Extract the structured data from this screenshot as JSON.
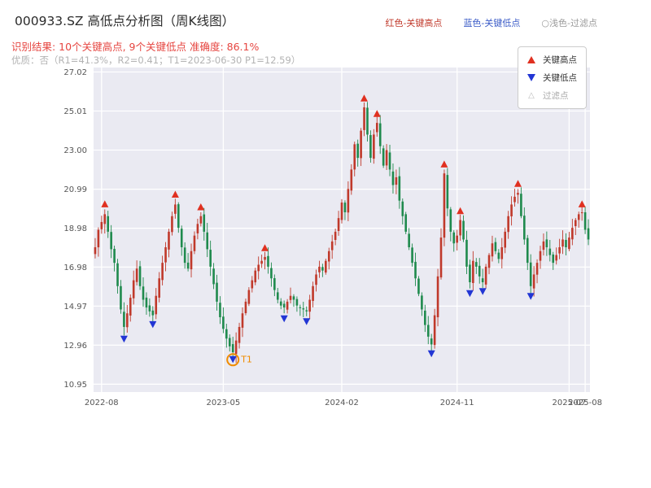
{
  "header": {
    "title": "000933.SZ 高低点分析图（周K线图）",
    "legend_high": "红色-关键高点",
    "legend_low": "蓝色-关键低点",
    "legend_filtered": "○浅色-过滤点",
    "result_line": "识别结果: 10个关键高点, 9个关键低点  准确度: 86.1%",
    "quality_line": "优质：否（R1=41.3%，R2=0.41；T1=2023-06-30 P1=12.59）"
  },
  "legend_box": {
    "items": [
      {
        "label": "关键高点",
        "marker": "red-up-triangle",
        "color": "#e03020"
      },
      {
        "label": "关键低点",
        "marker": "blue-down-triangle",
        "color": "#2236d4"
      },
      {
        "label": "过滤点",
        "marker": "hollow-triangle",
        "color": "#bbbbbb"
      }
    ]
  },
  "chart_data": {
    "type": "candlestick",
    "title": "000933.SZ 高低点分析图（周K线图）",
    "bg_color": "#eaeaf2",
    "grid": true,
    "grid_color": "#ffffff",
    "legend_position": "upper right",
    "up_color": "#c0392b",
    "down_color": "#1f8a4d",
    "key_high_color": "#e03020",
    "key_low_color": "#2236d4",
    "t1_color": "#f08c00",
    "ylim": [
      10.55,
      27.25
    ],
    "y_ticks": [
      27.02,
      25.01,
      23.0,
      20.99,
      18.98,
      16.98,
      14.97,
      12.96,
      10.95
    ],
    "x_ticks": [
      {
        "label": "2022-08",
        "index": 2
      },
      {
        "label": "2023-05",
        "index": 40
      },
      {
        "label": "2024-02",
        "index": 77
      },
      {
        "label": "2024-11",
        "index": 113
      },
      {
        "label": "2025-07",
        "index": 148
      },
      {
        "label": "2025-08",
        "index": 153
      }
    ],
    "closes": [
      18.0,
      18.9,
      19.3,
      19.7,
      18.8,
      17.9,
      17.2,
      16.0,
      14.8,
      13.9,
      14.6,
      15.4,
      16.3,
      16.9,
      16.0,
      15.3,
      14.9,
      14.7,
      14.5,
      15.5,
      16.4,
      17.2,
      18.0,
      18.8,
      19.6,
      20.2,
      19.0,
      18.0,
      17.2,
      16.9,
      17.8,
      18.6,
      19.2,
      19.6,
      18.8,
      17.9,
      17.0,
      16.1,
      15.2,
      14.4,
      13.8,
      13.3,
      12.9,
      12.6,
      13.2,
      13.9,
      14.6,
      15.2,
      15.8,
      16.3,
      16.8,
      17.1,
      17.3,
      17.5,
      17.0,
      16.4,
      15.8,
      15.3,
      15.0,
      14.9,
      15.2,
      15.5,
      15.3,
      15.0,
      14.9,
      14.8,
      14.7,
      15.3,
      16.0,
      16.6,
      17.0,
      16.8,
      17.3,
      17.8,
      18.3,
      18.8,
      19.5,
      20.3,
      19.8,
      21.0,
      22.0,
      23.3,
      22.6,
      24.0,
      25.2,
      23.8,
      22.6,
      23.8,
      24.4,
      23.2,
      22.2,
      23.0,
      22.0,
      21.2,
      21.6,
      20.4,
      19.6,
      18.8,
      18.0,
      17.2,
      16.4,
      15.6,
      14.8,
      14.0,
      13.4,
      13.0,
      14.5,
      16.5,
      18.5,
      21.8,
      20.0,
      18.8,
      18.2,
      18.6,
      19.4,
      18.4,
      17.0,
      16.2,
      17.3,
      17.0,
      16.5,
      16.2,
      17.0,
      17.6,
      18.2,
      17.8,
      17.4,
      18.0,
      18.8,
      19.6,
      20.2,
      20.6,
      20.8,
      19.6,
      18.4,
      17.2,
      16.0,
      16.6,
      17.2,
      17.8,
      18.3,
      18.0,
      17.6,
      17.2,
      17.6,
      18.0,
      18.4,
      18.0,
      18.5,
      19.0,
      19.4,
      19.7,
      19.8,
      18.9,
      18.4
    ],
    "key_highs": [
      {
        "index": 3,
        "price": 19.95
      },
      {
        "index": 25,
        "price": 20.45
      },
      {
        "index": 33,
        "price": 19.8
      },
      {
        "index": 53,
        "price": 17.7
      },
      {
        "index": 84,
        "price": 25.4
      },
      {
        "index": 88,
        "price": 24.6
      },
      {
        "index": 109,
        "price": 22.0
      },
      {
        "index": 114,
        "price": 19.6
      },
      {
        "index": 132,
        "price": 21.0
      },
      {
        "index": 152,
        "price": 19.95
      }
    ],
    "key_lows": [
      {
        "index": 9,
        "price": 13.55
      },
      {
        "index": 18,
        "price": 14.3
      },
      {
        "index": 43,
        "price": 12.5
      },
      {
        "index": 59,
        "price": 14.6
      },
      {
        "index": 66,
        "price": 14.45
      },
      {
        "index": 105,
        "price": 12.8
      },
      {
        "index": 117,
        "price": 15.9
      },
      {
        "index": 121,
        "price": 16.0
      },
      {
        "index": 136,
        "price": 15.75
      }
    ],
    "t1_point": {
      "index": 43,
      "price": 12.59,
      "label": "T1"
    }
  }
}
